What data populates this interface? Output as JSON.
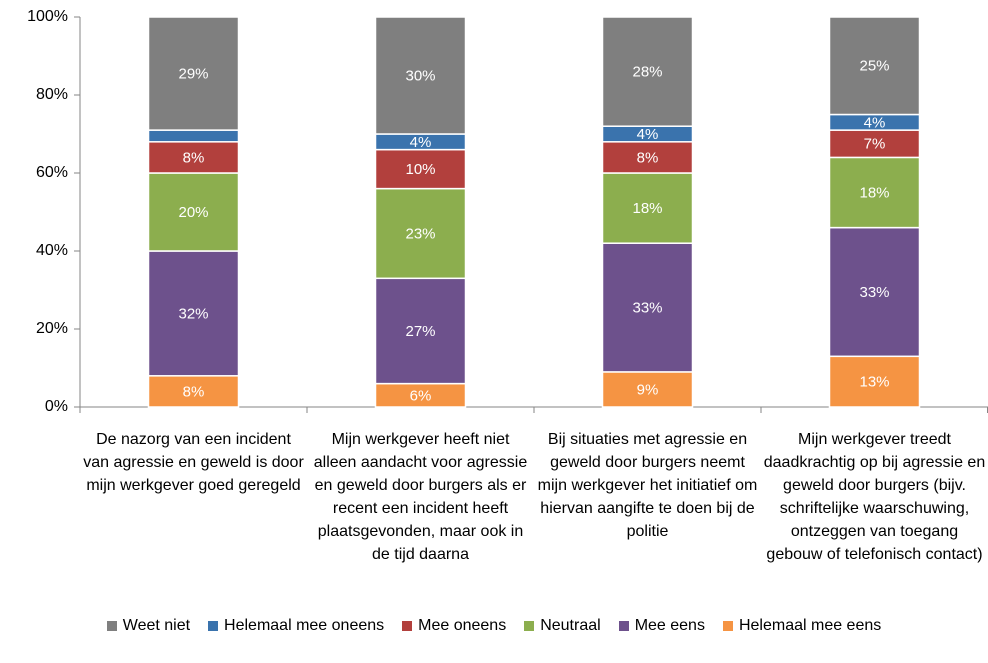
{
  "chart_data": {
    "type": "stacked_bar",
    "categories": [
      "De nazorg van een incident van agressie en geweld is door mijn werkgever goed geregeld",
      "Mijn werkgever heeft niet alleen aandacht voor agressie en geweld door burgers als er recent een incident heeft plaatsgevonden, maar ook in de tijd daarna",
      "Bij situaties met agressie en geweld door burgers neemt mijn werkgever het initiatief om hiervan aangifte te doen bij de politie",
      "Mijn werkgever treedt daadkrachtig op bij agressie en geweld door burgers (bijv. schriftelijke waarschuwing, ontzeggen van toegang gebouw of telefonisch contact)"
    ],
    "series": [
      {
        "name": "Weet niet",
        "color": "#7f7f7f",
        "values": [
          29,
          30,
          28,
          25
        ],
        "value_labels": [
          "29%",
          "30%",
          "28%",
          "25%"
        ]
      },
      {
        "name": "Helemaal mee oneens",
        "color": "#3a73ad",
        "values": [
          3,
          4,
          4,
          4
        ],
        "value_labels": [
          null,
          "4%",
          "4%",
          "4%"
        ]
      },
      {
        "name": "Mee oneens",
        "color": "#b2403d",
        "values": [
          8,
          10,
          8,
          7
        ],
        "value_labels": [
          "8%",
          "10%",
          "8%",
          "7%"
        ]
      },
      {
        "name": "Neutraal",
        "color": "#8cae4e",
        "values": [
          20,
          23,
          18,
          18
        ],
        "value_labels": [
          "20%",
          "23%",
          "18%",
          "18%"
        ]
      },
      {
        "name": "Mee eens",
        "color": "#6d518c",
        "values": [
          32,
          27,
          33,
          33
        ],
        "value_labels": [
          "32%",
          "27%",
          "33%",
          "33%"
        ]
      },
      {
        "name": "Helemaal mee eens",
        "color": "#f59443",
        "values": [
          8,
          6,
          9,
          13
        ],
        "value_labels": [
          "8%",
          "6%",
          "9%",
          "13%"
        ]
      }
    ],
    "ylim": [
      0,
      100
    ],
    "yticks": [
      {
        "value": 0,
        "label": "0%"
      },
      {
        "value": 20,
        "label": "20%"
      },
      {
        "value": 40,
        "label": "40%"
      },
      {
        "value": 60,
        "label": "60%"
      },
      {
        "value": 80,
        "label": "80%"
      },
      {
        "value": 100,
        "label": "100%"
      }
    ],
    "grid": false
  }
}
